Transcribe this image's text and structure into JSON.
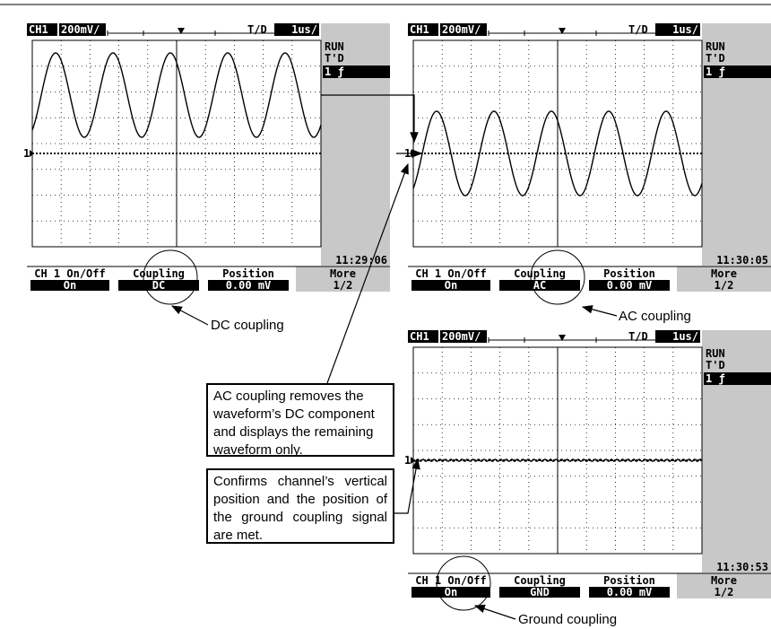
{
  "screens": [
    {
      "header": {
        "channel": "CH1",
        "volts": "200mV/",
        "td": "T/D",
        "timebase": "1us/"
      },
      "side": {
        "status": "RUN",
        "trigger": "T'D",
        "mode": "1 ƒ"
      },
      "marker": "1",
      "time": "11:29:06",
      "softkeys": [
        {
          "label": "CH 1 On/Off",
          "value": "On"
        },
        {
          "label": "Coupling",
          "value": "DC"
        },
        {
          "label": "Position",
          "value": "0.00 mV"
        },
        {
          "label": "More",
          "value": "1/2"
        }
      ]
    },
    {
      "header": {
        "channel": "CH1",
        "volts": "200mV/",
        "td": "T/D",
        "timebase": "1us/"
      },
      "side": {
        "status": "RUN",
        "trigger": "T'D",
        "mode": "1 ƒ"
      },
      "marker": "1",
      "time": "11:30:05",
      "softkeys": [
        {
          "label": "CH 1 On/Off",
          "value": "On"
        },
        {
          "label": "Coupling",
          "value": "AC"
        },
        {
          "label": "Position",
          "value": "0.00 mV"
        },
        {
          "label": "More",
          "value": "1/2"
        }
      ]
    },
    {
      "header": {
        "channel": "CH1",
        "volts": "200mV/",
        "td": "T/D",
        "timebase": "1us/"
      },
      "side": {
        "status": "RUN",
        "trigger": "T'D",
        "mode": "1 ƒ"
      },
      "marker": "1",
      "time": "11:30:53",
      "softkeys": [
        {
          "label": "CH 1 On/Off",
          "value": "On"
        },
        {
          "label": "Coupling",
          "value": "GND"
        },
        {
          "label": "Position",
          "value": "0.00 mV"
        },
        {
          "label": "More",
          "value": "1/2"
        }
      ]
    }
  ],
  "annotations": {
    "dc": "DC coupling",
    "ac": "AC coupling",
    "gnd": "Ground coupling"
  },
  "notes": [
    "AC coupling removes the waveform’s DC component and displays the remaining waveform only.",
    "Confirms channel’s  vertical position and the position of the ground coupling signal are met."
  ]
}
